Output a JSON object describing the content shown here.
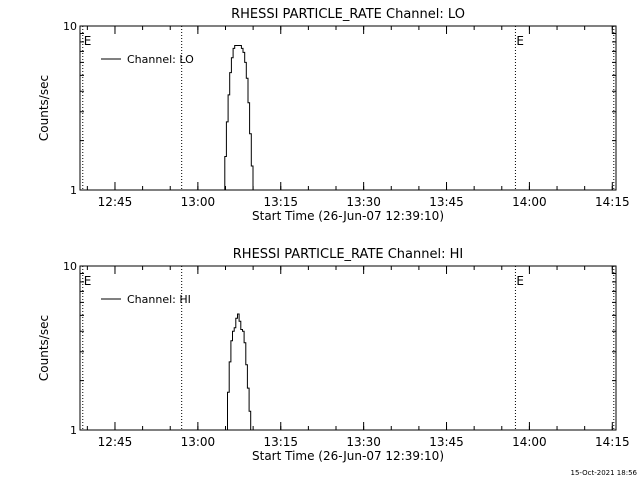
{
  "footer_timestamp": "15-Oct-2021 18:56",
  "chart_data": [
    {
      "type": "line",
      "title": "RHESSI PARTICLE_RATE Channel: LO",
      "xlabel": "Start Time (26-Jun-07 12:39:10)",
      "ylabel": "Counts/sec",
      "y_scale": "log",
      "ylim": [
        1,
        10
      ],
      "yticks": [
        "1",
        "10"
      ],
      "xlim_minutes": [
        -0.5,
        96.5
      ],
      "x_ticks": [
        {
          "label": "12:45",
          "t": 5.83
        },
        {
          "label": "13:00",
          "t": 20.83
        },
        {
          "label": "13:15",
          "t": 35.83
        },
        {
          "label": "13:30",
          "t": 50.83
        },
        {
          "label": "13:45",
          "t": 65.83
        },
        {
          "label": "14:00",
          "t": 80.83
        },
        {
          "label": "14:15",
          "t": 95.83
        }
      ],
      "minor_ticks_per_major": 3,
      "legend": {
        "label": "Channel: LO",
        "position": "top-left"
      },
      "event_lines": [
        {
          "t": 0.0,
          "label": "E"
        },
        {
          "t": 17.9,
          "label": ""
        },
        {
          "t": 78.3,
          "label": "E"
        },
        {
          "t": 96.1,
          "label": ""
        }
      ],
      "series": [
        {
          "name": "Channel: LO",
          "points": [
            [
              25.4,
              1.0
            ],
            [
              25.7,
              1.6
            ],
            [
              26.0,
              2.6
            ],
            [
              26.3,
              3.8
            ],
            [
              26.6,
              5.2
            ],
            [
              26.9,
              6.4
            ],
            [
              27.2,
              7.3
            ],
            [
              27.5,
              7.6
            ],
            [
              27.8,
              7.6
            ],
            [
              28.1,
              7.6
            ],
            [
              28.4,
              7.6
            ],
            [
              28.7,
              7.3
            ],
            [
              29.0,
              6.9
            ],
            [
              29.3,
              6.0
            ],
            [
              29.6,
              4.8
            ],
            [
              29.9,
              3.4
            ],
            [
              30.2,
              2.2
            ],
            [
              30.5,
              1.4
            ],
            [
              30.8,
              1.0
            ]
          ]
        }
      ]
    },
    {
      "type": "line",
      "title": "RHESSI PARTICLE_RATE Channel: HI",
      "xlabel": "Start Time (26-Jun-07 12:39:10)",
      "ylabel": "Counts/sec",
      "y_scale": "log",
      "ylim": [
        1,
        10
      ],
      "yticks": [
        "1",
        "10"
      ],
      "xlim_minutes": [
        -0.5,
        96.5
      ],
      "x_ticks": [
        {
          "label": "12:45",
          "t": 5.83
        },
        {
          "label": "13:00",
          "t": 20.83
        },
        {
          "label": "13:15",
          "t": 35.83
        },
        {
          "label": "13:30",
          "t": 50.83
        },
        {
          "label": "13:45",
          "t": 65.83
        },
        {
          "label": "14:00",
          "t": 80.83
        },
        {
          "label": "14:15",
          "t": 95.83
        }
      ],
      "minor_ticks_per_major": 3,
      "legend": {
        "label": "Channel: HI",
        "position": "top-left"
      },
      "event_lines": [
        {
          "t": 0.0,
          "label": "E"
        },
        {
          "t": 17.9,
          "label": ""
        },
        {
          "t": 78.3,
          "label": "E"
        },
        {
          "t": 96.1,
          "label": ""
        }
      ],
      "series": [
        {
          "name": "Channel: HI",
          "points": [
            [
              25.9,
              1.0
            ],
            [
              26.2,
              1.7
            ],
            [
              26.5,
              2.6
            ],
            [
              26.8,
              3.5
            ],
            [
              27.1,
              4.0
            ],
            [
              27.4,
              4.2
            ],
            [
              27.7,
              4.8
            ],
            [
              28.0,
              5.1
            ],
            [
              28.3,
              4.6
            ],
            [
              28.6,
              4.1
            ],
            [
              28.9,
              4.0
            ],
            [
              29.2,
              3.4
            ],
            [
              29.5,
              2.5
            ],
            [
              29.8,
              1.8
            ],
            [
              30.1,
              1.3
            ],
            [
              30.4,
              1.0
            ]
          ]
        }
      ]
    }
  ]
}
